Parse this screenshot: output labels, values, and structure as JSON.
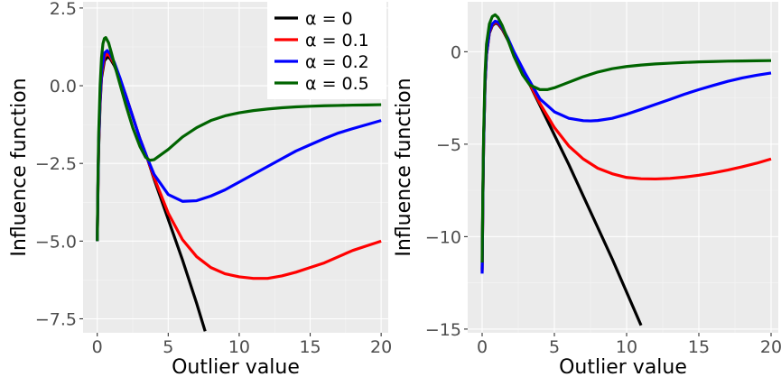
{
  "chart_data": [
    {
      "type": "line",
      "title": "",
      "xlabel": "Outlier value",
      "ylabel": "Influence function",
      "xlim": [
        -1,
        20.5
      ],
      "ylim": [
        -7.95,
        2.7
      ],
      "xticks": [
        0,
        5,
        10,
        15,
        20
      ],
      "yticks": [
        2.5,
        0.0,
        -2.5,
        -5.0,
        -7.5
      ],
      "ytick_labels": [
        "2.5",
        "0.0",
        "−2.5",
        "−5.0",
        "−7.5"
      ],
      "grid": true,
      "legend_position": "top-right",
      "series": [
        {
          "name": "α = 0",
          "color": "#000000",
          "x": [
            0,
            0.05,
            0.1,
            0.2,
            0.3,
            0.5,
            0.7,
            0.9,
            1.2,
            1.6,
            2.0,
            2.5,
            3.0,
            3.5,
            4.0,
            5.0,
            6.0,
            7.0,
            7.6
          ],
          "y": [
            -5.0,
            -3.3,
            -2.0,
            -0.6,
            0.25,
            0.8,
            0.92,
            0.88,
            0.65,
            0.2,
            -0.3,
            -1.0,
            -1.7,
            -2.3,
            -3.0,
            -4.3,
            -5.6,
            -7.0,
            -7.9
          ]
        },
        {
          "name": "α = 0.1",
          "color": "#ff0000",
          "x": [
            0,
            0.05,
            0.1,
            0.2,
            0.3,
            0.5,
            0.7,
            0.9,
            1.2,
            1.6,
            2.0,
            2.5,
            3.0,
            3.5,
            4.0,
            5.0,
            6.0,
            7.0,
            8.0,
            9.0,
            10.0,
            11.0,
            12.0,
            13.0,
            14.0,
            15.0,
            16.0,
            17.0,
            18.0,
            19.0,
            20.0
          ],
          "y": [
            -5.0,
            -3.25,
            -1.9,
            -0.5,
            0.35,
            0.92,
            1.02,
            0.95,
            0.7,
            0.22,
            -0.3,
            -1.0,
            -1.7,
            -2.3,
            -2.95,
            -4.1,
            -4.95,
            -5.5,
            -5.85,
            -6.05,
            -6.15,
            -6.2,
            -6.2,
            -6.12,
            -6.0,
            -5.85,
            -5.7,
            -5.5,
            -5.3,
            -5.15,
            -5.0
          ]
        },
        {
          "name": "α = 0.2",
          "color": "#0000ff",
          "x": [
            0,
            0.05,
            0.1,
            0.2,
            0.3,
            0.5,
            0.7,
            0.9,
            1.2,
            1.6,
            2.0,
            2.5,
            3.0,
            3.5,
            4.0,
            5.0,
            6.0,
            7.0,
            8.0,
            9.0,
            10.0,
            11.0,
            12.0,
            13.0,
            14.0,
            15.0,
            16.0,
            17.0,
            18.0,
            19.0,
            20.0
          ],
          "y": [
            -5.0,
            -3.2,
            -1.8,
            -0.4,
            0.45,
            1.05,
            1.13,
            1.03,
            0.75,
            0.25,
            -0.3,
            -1.0,
            -1.7,
            -2.3,
            -2.85,
            -3.5,
            -3.72,
            -3.7,
            -3.55,
            -3.35,
            -3.1,
            -2.85,
            -2.6,
            -2.35,
            -2.1,
            -1.9,
            -1.7,
            -1.52,
            -1.38,
            -1.25,
            -1.12
          ]
        },
        {
          "name": "α = 0.5",
          "color": "#006400",
          "x": [
            0,
            0.05,
            0.1,
            0.2,
            0.3,
            0.4,
            0.5,
            0.6,
            0.8,
            1.0,
            1.2,
            1.6,
            2.0,
            2.5,
            3.0,
            3.4,
            3.7,
            4.0,
            5.0,
            6.0,
            7.0,
            8.0,
            9.0,
            10.0,
            11.0,
            12.0,
            13.0,
            14.0,
            15.0,
            16.0,
            17.0,
            18.0,
            19.0,
            20.0
          ],
          "y": [
            -5.0,
            -3.0,
            -1.5,
            0.0,
            0.9,
            1.35,
            1.52,
            1.55,
            1.38,
            1.05,
            0.7,
            0.05,
            -0.6,
            -1.35,
            -1.95,
            -2.3,
            -2.4,
            -2.38,
            -2.05,
            -1.65,
            -1.35,
            -1.12,
            -0.97,
            -0.87,
            -0.8,
            -0.75,
            -0.71,
            -0.68,
            -0.66,
            -0.645,
            -0.635,
            -0.625,
            -0.618,
            -0.61
          ]
        }
      ]
    },
    {
      "type": "line",
      "title": "",
      "xlabel": "Outlier value",
      "ylabel": "Influence function",
      "xlim": [
        -1,
        20.5
      ],
      "ylim": [
        -15.2,
        2.7
      ],
      "xticks": [
        0,
        5,
        10,
        15,
        20
      ],
      "yticks": [
        0,
        -5,
        -10,
        -15
      ],
      "ytick_labels": [
        "0",
        "−5",
        "−10",
        "−15"
      ],
      "grid": true,
      "legend_position": "none",
      "series": [
        {
          "name": "α = 0",
          "color": "#000000",
          "x": [
            0,
            0.05,
            0.1,
            0.2,
            0.3,
            0.5,
            0.7,
            0.9,
            1.1,
            1.4,
            1.8,
            2.2,
            3.0,
            4.0,
            5.0,
            6.0,
            7.0,
            8.0,
            9.0,
            10.0,
            11.0
          ],
          "y": [
            -11.8,
            -8.0,
            -5.0,
            -1.8,
            -0.2,
            1.0,
            1.4,
            1.55,
            1.5,
            1.2,
            0.6,
            -0.1,
            -1.3,
            -2.9,
            -4.5,
            -6.1,
            -7.8,
            -9.5,
            -11.2,
            -13.0,
            -14.8
          ]
        },
        {
          "name": "α = 0.1",
          "color": "#ff0000",
          "x": [
            0,
            0.05,
            0.1,
            0.2,
            0.3,
            0.5,
            0.7,
            0.9,
            1.1,
            1.4,
            1.8,
            2.2,
            3.0,
            4.0,
            5.0,
            6.0,
            7.0,
            8.0,
            9.0,
            10.0,
            11.0,
            12.0,
            13.0,
            14.0,
            15.0,
            16.0,
            17.0,
            18.0,
            19.0,
            20.0
          ],
          "y": [
            -11.9,
            -8.0,
            -5.0,
            -1.8,
            -0.15,
            1.05,
            1.45,
            1.6,
            1.55,
            1.25,
            0.65,
            -0.05,
            -1.3,
            -2.8,
            -4.1,
            -5.1,
            -5.8,
            -6.3,
            -6.6,
            -6.8,
            -6.87,
            -6.88,
            -6.85,
            -6.78,
            -6.68,
            -6.55,
            -6.4,
            -6.22,
            -6.03,
            -5.8
          ]
        },
        {
          "name": "α = 0.2",
          "color": "#0000ff",
          "x": [
            0,
            0.05,
            0.1,
            0.2,
            0.3,
            0.5,
            0.7,
            0.9,
            1.1,
            1.4,
            1.8,
            2.2,
            3.0,
            4.0,
            5.0,
            6.0,
            7.0,
            7.5,
            8.0,
            9.0,
            10.0,
            11.0,
            12.0,
            13.0,
            14.0,
            15.0,
            16.0,
            17.0,
            18.0,
            19.0,
            20.0
          ],
          "y": [
            -12.0,
            -8.0,
            -5.0,
            -1.7,
            -0.1,
            1.1,
            1.5,
            1.65,
            1.6,
            1.3,
            0.7,
            0.0,
            -1.2,
            -2.55,
            -3.25,
            -3.6,
            -3.73,
            -3.74,
            -3.72,
            -3.6,
            -3.38,
            -3.12,
            -2.85,
            -2.58,
            -2.3,
            -2.05,
            -1.82,
            -1.6,
            -1.42,
            -1.27,
            -1.15
          ]
        },
        {
          "name": "α = 0.5",
          "color": "#006400",
          "x": [
            0,
            0.05,
            0.1,
            0.2,
            0.3,
            0.5,
            0.7,
            0.9,
            1.1,
            1.4,
            1.8,
            2.2,
            2.8,
            3.3,
            4.0,
            4.5,
            5.0,
            6.0,
            7.0,
            8.0,
            9.0,
            10.0,
            11.0,
            12.0,
            13.0,
            14.0,
            15.0,
            16.0,
            17.0,
            18.0,
            19.0,
            20.0
          ],
          "y": [
            -11.4,
            -7.5,
            -4.5,
            -1.2,
            0.4,
            1.5,
            1.9,
            2.0,
            1.85,
            1.4,
            0.6,
            -0.25,
            -1.25,
            -1.8,
            -2.05,
            -2.05,
            -1.95,
            -1.65,
            -1.35,
            -1.1,
            -0.92,
            -0.8,
            -0.72,
            -0.66,
            -0.62,
            -0.58,
            -0.55,
            -0.53,
            -0.51,
            -0.5,
            -0.49,
            -0.48
          ]
        }
      ]
    }
  ]
}
